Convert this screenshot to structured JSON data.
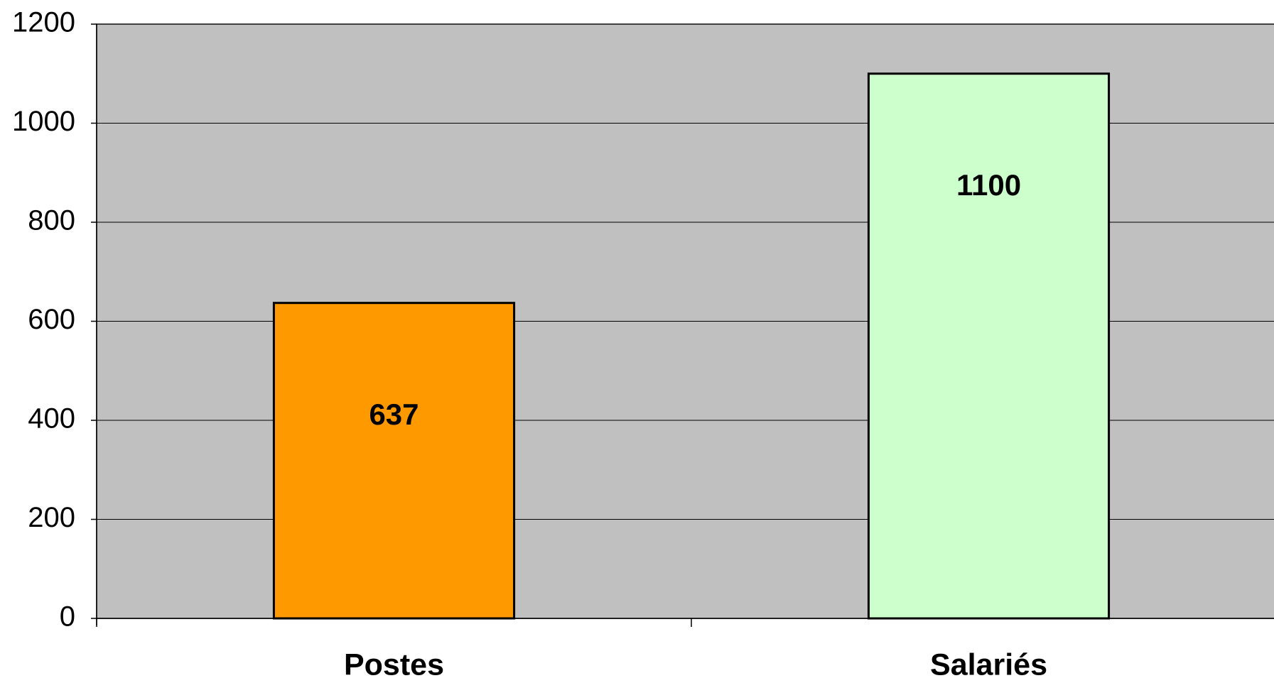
{
  "chart_data": {
    "type": "bar",
    "categories": [
      "Postes",
      "Salariés"
    ],
    "values": [
      637,
      1100
    ],
    "colors": [
      "#ff9900",
      "#ccffcc"
    ],
    "ylim": [
      0,
      1200
    ],
    "yticks": [
      0,
      200,
      400,
      600,
      800,
      1000,
      1200
    ],
    "grid": true
  }
}
